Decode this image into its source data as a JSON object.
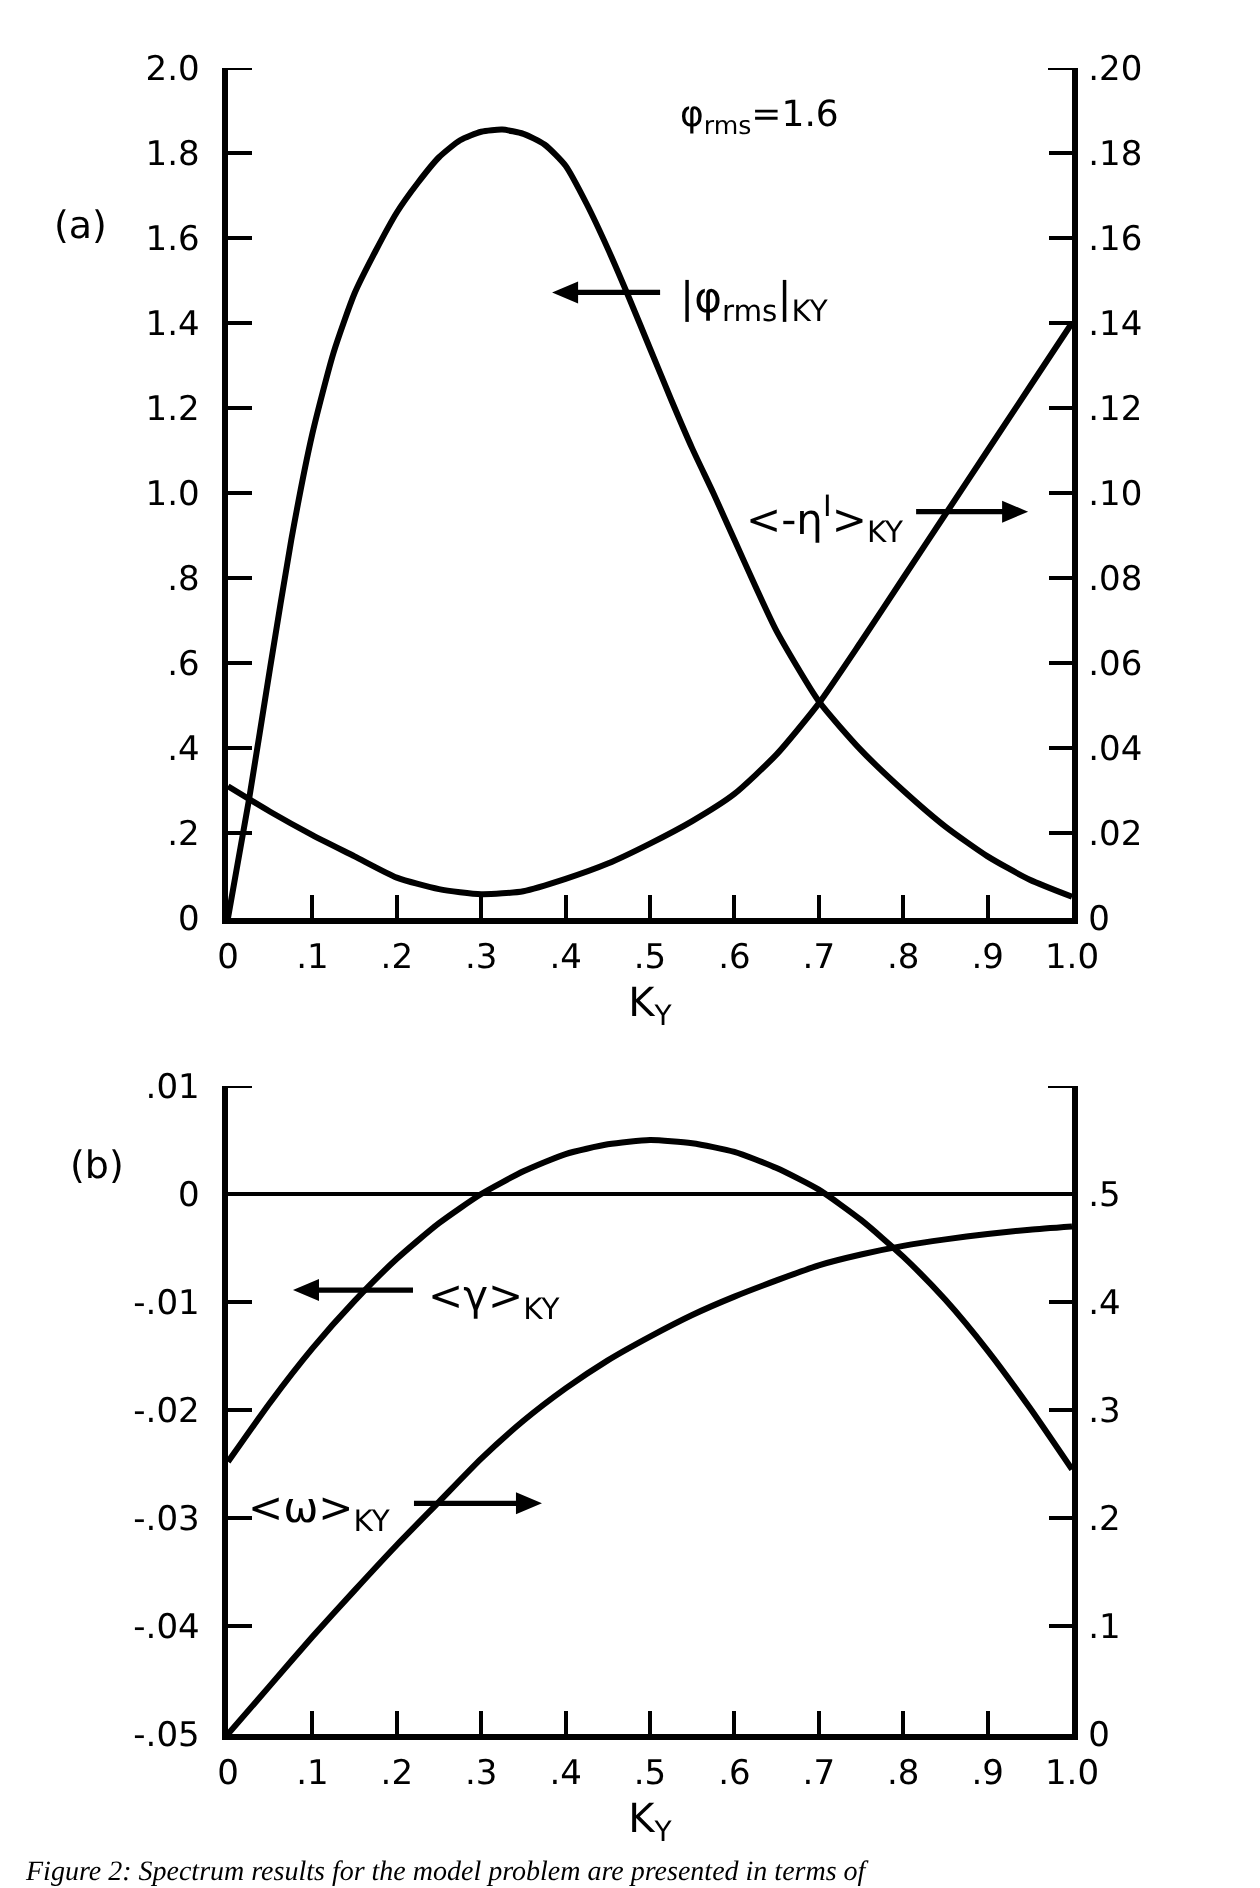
{
  "chart_data": [
    {
      "type": "line",
      "xlabel": "K$_{Y}$",
      "xlim": [
        0,
        1
      ],
      "xticks": [
        0,
        {
          "value": 0.1,
          "label": ".1"
        },
        {
          "value": 0.2,
          "label": ".2"
        },
        {
          "value": 0.3,
          "label": ".3"
        },
        {
          "value": 0.4,
          "label": ".4"
        },
        {
          "value": 0.5,
          "label": ".5"
        },
        {
          "value": 0.6,
          "label": ".6"
        },
        {
          "value": 0.7,
          "label": ".7"
        },
        {
          "value": 0.8,
          "label": ".8"
        },
        {
          "value": 0.9,
          "label": ".9"
        },
        {
          "value": 1,
          "label": "1.0"
        }
      ],
      "ylim": [
        0,
        2
      ],
      "yticks": [
        0,
        {
          "value": 0.2,
          "label": ".2"
        },
        {
          "value": 0.4,
          "label": ".4"
        },
        {
          "value": 0.6,
          "label": ".6"
        },
        {
          "value": 0.8,
          "label": ".8"
        },
        {
          "value": 1,
          "label": "1.0"
        },
        1.2,
        1.4,
        1.6,
        1.8,
        {
          "value": 2,
          "label": "2.0"
        }
      ],
      "y2lim": [
        0,
        0.2
      ],
      "y2ticks": [
        0,
        {
          "value": 0.02,
          "label": ".02"
        },
        {
          "value": 0.04,
          "label": ".04"
        },
        {
          "value": 0.06,
          "label": ".06"
        },
        {
          "value": 0.08,
          "label": ".08"
        },
        {
          "value": 0.1,
          "label": ".10"
        },
        {
          "value": 0.12,
          "label": ".12"
        },
        {
          "value": 0.14,
          "label": ".14"
        },
        {
          "value": 0.16,
          "label": ".16"
        },
        {
          "value": 0.18,
          "label": ".18"
        },
        {
          "value": 0.2,
          "label": ".20"
        }
      ],
      "series": [
        {
          "name": "|φ$_{rms}$|$_{KY}$",
          "color": "#000000",
          "x": [
            0,
            0.025,
            0.05,
            0.075,
            0.1,
            0.125,
            0.15,
            0.175,
            0.2,
            0.225,
            0.25,
            0.275,
            0.3,
            0.325,
            0.35,
            0.375,
            0.4,
            0.425,
            0.45,
            0.475,
            0.5,
            0.525,
            0.55,
            0.575,
            0.6,
            0.625,
            0.65,
            0.7,
            0.75,
            0.8,
            0.85,
            0.9,
            0.95,
            1
          ],
          "values": [
            0,
            0.28,
            0.59,
            0.89,
            1.14,
            1.33,
            1.47,
            1.57,
            1.66,
            1.73,
            1.79,
            1.83,
            1.85,
            1.855,
            1.845,
            1.82,
            1.77,
            1.68,
            1.575,
            1.46,
            1.34,
            1.22,
            1.105,
            1.0,
            0.89,
            0.78,
            0.675,
            0.51,
            0.395,
            0.3,
            0.215,
            0.145,
            0.09,
            0.05
          ]
        },
        {
          "name": "<-η$^{I}$>$_{KY}$",
          "color": "#000000",
          "axis": "y2",
          "x": [
            0,
            0.05,
            0.1,
            0.15,
            0.2,
            0.25,
            0.3,
            0.35,
            0.4,
            0.45,
            0.5,
            0.55,
            0.6,
            0.65,
            0.7,
            0.75,
            0.8,
            0.85,
            0.9,
            0.95,
            1
          ],
          "values": [
            0.031,
            0.025,
            0.0195,
            0.0145,
            0.0095,
            0.0068,
            0.0056,
            0.0063,
            0.0092,
            0.0128,
            0.0175,
            0.0228,
            0.0292,
            0.0385,
            0.0505,
            0.065,
            0.08,
            0.095,
            0.11,
            0.125,
            0.14
          ]
        }
      ],
      "annotations": [
        "(a)",
        "φ$_{rms}$=1.6"
      ]
    },
    {
      "type": "line",
      "xlabel": "K$_{Y}$",
      "xlim": [
        0,
        1
      ],
      "xticks": [
        0,
        {
          "value": 0.1,
          "label": ".1"
        },
        {
          "value": 0.2,
          "label": ".2"
        },
        {
          "value": 0.3,
          "label": ".3"
        },
        {
          "value": 0.4,
          "label": ".4"
        },
        {
          "value": 0.5,
          "label": ".5"
        },
        {
          "value": 0.6,
          "label": ".6"
        },
        {
          "value": 0.7,
          "label": ".7"
        },
        {
          "value": 0.8,
          "label": ".8"
        },
        {
          "value": 0.9,
          "label": ".9"
        },
        {
          "value": 1,
          "label": "1.0"
        }
      ],
      "ylim": [
        -0.05,
        0.01
      ],
      "yticks": [
        {
          "value": -0.05,
          "label": "-.05"
        },
        {
          "value": -0.04,
          "label": "-.04"
        },
        {
          "value": -0.03,
          "label": "-.03"
        },
        {
          "value": -0.02,
          "label": "-.02"
        },
        {
          "value": -0.01,
          "label": "-.01"
        },
        0,
        {
          "value": 0.01,
          "label": ".01"
        }
      ],
      "y2lim": [
        0,
        0.6
      ],
      "y2ticks": [
        0,
        {
          "value": 0.1,
          "label": ".1"
        },
        {
          "value": 0.2,
          "label": ".2"
        },
        {
          "value": 0.3,
          "label": ".3"
        },
        {
          "value": 0.4,
          "label": ".4"
        },
        {
          "value": 0.5,
          "label": ".5"
        },
        {
          "value": 0.6,
          "label": null
        }
      ],
      "series": [
        {
          "name": "<γ>$_{KY}$",
          "color": "#000000",
          "x": [
            0,
            0.05,
            0.1,
            0.15,
            0.2,
            0.25,
            0.3,
            0.35,
            0.4,
            0.45,
            0.5,
            0.55,
            0.6,
            0.65,
            0.7,
            0.75,
            0.8,
            0.85,
            0.9,
            0.95,
            1
          ],
          "values": [
            -0.0248,
            -0.0193,
            -0.0143,
            -0.0099,
            -0.006,
            -0.0027,
            0,
            0.0021,
            0.0037,
            0.0046,
            0.005,
            0.0047,
            0.0039,
            0.0024,
            0.0004,
            -0.0024,
            -0.0058,
            -0.0098,
            -0.0145,
            -0.0198,
            -0.0255
          ]
        },
        {
          "name": "<ω>$_{KY}$",
          "color": "#000000",
          "axis": "y2",
          "x": [
            0,
            0.05,
            0.1,
            0.15,
            0.2,
            0.25,
            0.3,
            0.35,
            0.4,
            0.45,
            0.5,
            0.55,
            0.6,
            0.65,
            0.7,
            0.75,
            0.8,
            0.85,
            0.9,
            0.95,
            1
          ],
          "values": [
            0,
            0.045,
            0.09,
            0.133,
            0.175,
            0.215,
            0.255,
            0.29,
            0.32,
            0.346,
            0.368,
            0.388,
            0.405,
            0.42,
            0.434,
            0.444,
            0.452,
            0.458,
            0.463,
            0.467,
            0.47
          ]
        }
      ],
      "ref_lines": [
        {
          "axis": "y",
          "value": 0,
          "color": "#000000"
        }
      ],
      "annotations": [
        "(b)",
        "Figure 2: Spectrum results for the model problem are presented in terms of"
      ]
    }
  ]
}
